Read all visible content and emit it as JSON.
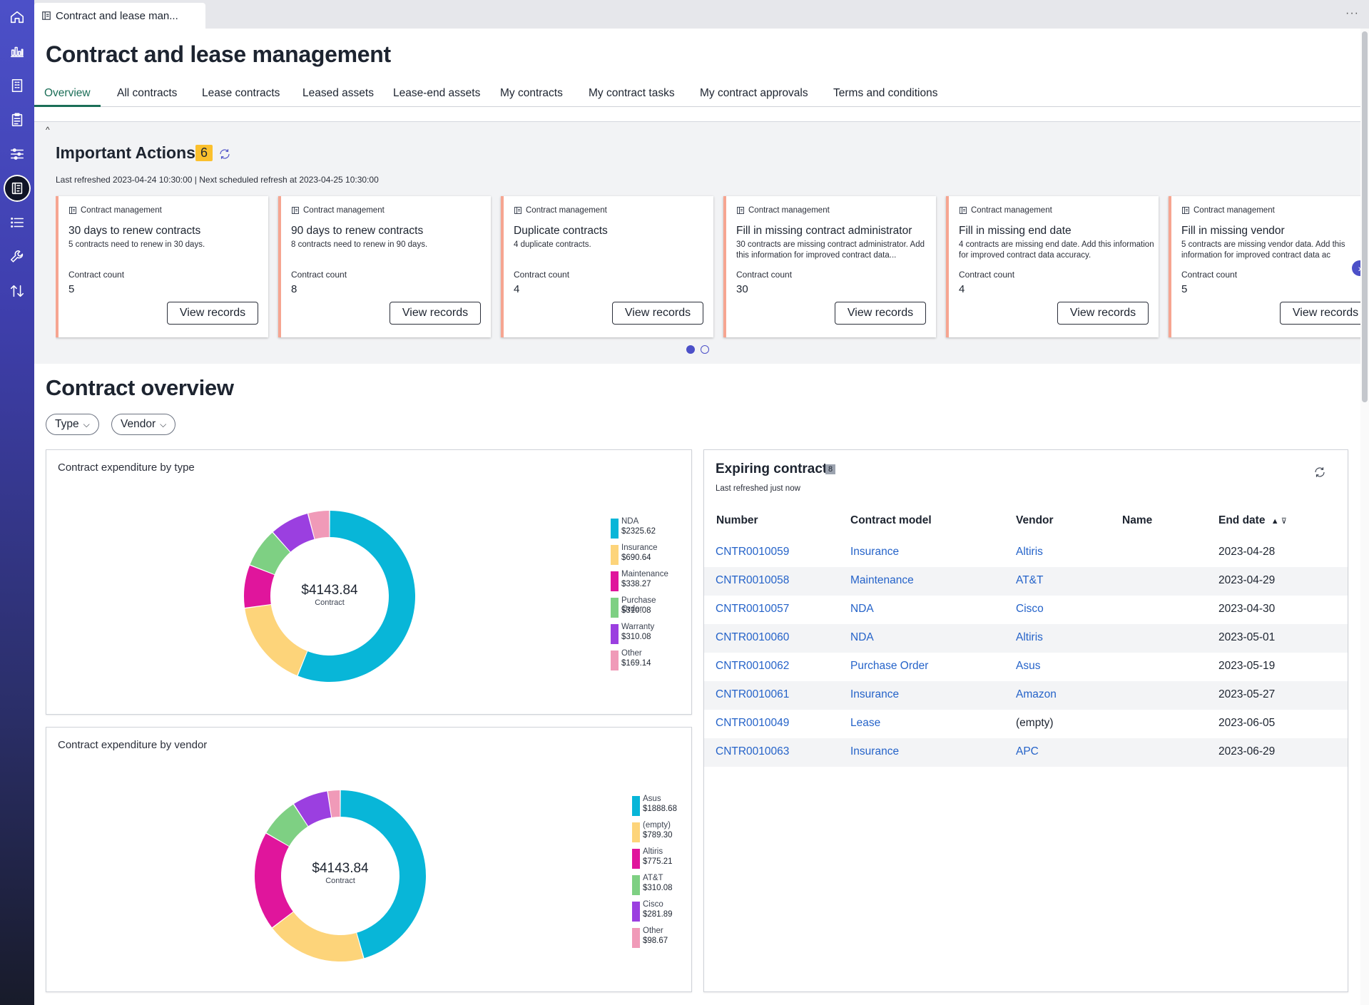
{
  "app": {
    "tab_title": "Contract and lease man...",
    "more": "···"
  },
  "page": {
    "title": "Contract and lease management",
    "tabs": [
      "Overview",
      "All contracts",
      "Lease contracts",
      "Leased assets",
      "Lease-end assets",
      "My contracts",
      "My contract tasks",
      "My contract approvals",
      "Terms and conditions"
    ],
    "active_tab": "Overview"
  },
  "actions": {
    "collapse": "^",
    "title": "Important Actions",
    "badge": "6",
    "subtitle": "Last refreshed 2023-04-24 10:30:00 | Next scheduled refresh at 2023-04-25 10:30:00",
    "cards": [
      {
        "category": "Contract management",
        "title": "30 days to renew contracts",
        "desc": "5 contracts need to renew in 30 days.",
        "label": "Contract count",
        "count": "5",
        "button": "View records"
      },
      {
        "category": "Contract management",
        "title": "90 days to renew contracts",
        "desc": "8 contracts need to renew in 90 days.",
        "label": "Contract count",
        "count": "8",
        "button": "View records"
      },
      {
        "category": "Contract management",
        "title": "Duplicate contracts",
        "desc": "4 duplicate contracts.",
        "label": "Contract count",
        "count": "4",
        "button": "View records"
      },
      {
        "category": "Contract management",
        "title": "Fill in missing contract administrator",
        "desc": "30 contracts are missing contract administrator. Add this information for improved contract data...",
        "label": "Contract count",
        "count": "30",
        "button": "View records"
      },
      {
        "category": "Contract management",
        "title": "Fill in missing end date",
        "desc": "4 contracts are missing end date. Add this information for improved contract data accuracy.",
        "label": "Contract count",
        "count": "4",
        "button": "View records"
      },
      {
        "category": "Contract management",
        "title": "Fill in missing vendor",
        "desc": "5 contracts are missing vendor data. Add this information for improved contract data ac",
        "label": "Contract count",
        "count": "5",
        "button": "View records"
      }
    ],
    "next_arrow": "›"
  },
  "overview": {
    "title": "Contract overview",
    "filters": [
      {
        "label": "Type"
      },
      {
        "label": "Vendor"
      }
    ],
    "chev": "⌵"
  },
  "chart_data": [
    {
      "type": "pie",
      "title": "Contract expenditure by type",
      "center_amount": "$4143.84",
      "center_label": "Contract",
      "legend_position": "right",
      "categories": [
        "NDA",
        "Insurance",
        "Maintenance",
        "Purchase Order",
        "Warranty",
        "Other"
      ],
      "values": [
        2325.62,
        690.64,
        338.27,
        310.08,
        310.08,
        169.14
      ],
      "value_labels": [
        "$2325.62",
        "$690.64",
        "$338.27",
        "$310.08",
        "$310.08",
        "$169.14"
      ],
      "colors": [
        "#08b6d8",
        "#fdd47a",
        "#e0159c",
        "#7ed083",
        "#9b3fe0",
        "#f09ab8"
      ]
    },
    {
      "type": "pie",
      "title": "Contract expenditure by vendor",
      "center_amount": "$4143.84",
      "center_label": "Contract",
      "legend_position": "right",
      "categories": [
        "Asus",
        "(empty)",
        "Altiris",
        "AT&T",
        "Cisco",
        "Other"
      ],
      "values": [
        1888.68,
        789.3,
        775.21,
        310.08,
        281.89,
        98.67
      ],
      "value_labels": [
        "$1888.68",
        "$789.30",
        "$775.21",
        "$310.08",
        "$281.89",
        "$98.67"
      ],
      "colors": [
        "#08b6d8",
        "#fdd47a",
        "#e0159c",
        "#7ed083",
        "#9b3fe0",
        "#f09ab8"
      ]
    }
  ],
  "expiring": {
    "title": "Expiring contract",
    "badge": "8",
    "subtitle": "Last refreshed just now",
    "columns": [
      "Number",
      "Contract model",
      "Vendor",
      "Name",
      "End date"
    ],
    "sort_icon": "▲ ⊽",
    "rows": [
      {
        "number": "CNTR0010059",
        "model": "Insurance",
        "vendor": "Altiris",
        "name": "",
        "end": "2023-04-28",
        "vendor_link": true
      },
      {
        "number": "CNTR0010058",
        "model": "Maintenance",
        "vendor": "AT&T",
        "name": "",
        "end": "2023-04-29",
        "vendor_link": true
      },
      {
        "number": "CNTR0010057",
        "model": "NDA",
        "vendor": "Cisco",
        "name": "",
        "end": "2023-04-30",
        "vendor_link": true
      },
      {
        "number": "CNTR0010060",
        "model": "NDA",
        "vendor": "Altiris",
        "name": "",
        "end": "2023-05-01",
        "vendor_link": true
      },
      {
        "number": "CNTR0010062",
        "model": "Purchase Order",
        "vendor": "Asus",
        "name": "",
        "end": "2023-05-19",
        "vendor_link": true
      },
      {
        "number": "CNTR0010061",
        "model": "Insurance",
        "vendor": "Amazon",
        "name": "",
        "end": "2023-05-27",
        "vendor_link": true
      },
      {
        "number": "CNTR0010049",
        "model": "Lease",
        "vendor": "(empty)",
        "name": "",
        "end": "2023-06-05",
        "vendor_link": false
      },
      {
        "number": "CNTR0010063",
        "model": "Insurance",
        "vendor": "APC",
        "name": "",
        "end": "2023-06-29",
        "vendor_link": true
      }
    ]
  },
  "icons": {
    "rail": [
      "home-icon",
      "chart-icon",
      "building-icon",
      "clipboard-icon",
      "sliders-icon",
      "contract-icon",
      "list-icon",
      "wrench-icon",
      "sort-arrows-icon"
    ],
    "active_rail": "contract-icon"
  }
}
